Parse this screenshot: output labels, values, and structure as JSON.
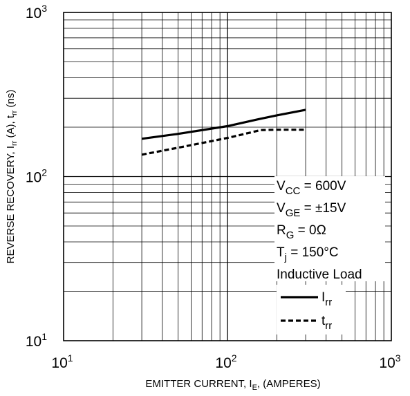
{
  "chart_data": {
    "type": "line",
    "xscale": "log",
    "yscale": "log",
    "xlim": [
      10,
      1000
    ],
    "ylim": [
      10,
      1000
    ],
    "grid": true,
    "x_ticks": [
      {
        "value": 10,
        "base": "10",
        "exp": "1"
      },
      {
        "value": 100,
        "base": "10",
        "exp": "2"
      },
      {
        "value": 1000,
        "base": "10",
        "exp": "3"
      }
    ],
    "y_ticks": [
      {
        "value": 10,
        "base": "10",
        "exp": "1"
      },
      {
        "value": 100,
        "base": "10",
        "exp": "2"
      },
      {
        "value": 1000,
        "base": "10",
        "exp": "3"
      }
    ],
    "xlabel": {
      "main": "EMITTER CURRENT, I",
      "sub": "E",
      "tail": ", (AMPERES)"
    },
    "ylabel": {
      "p1": "REVERSE RECOVERY, I",
      "s1": "rr",
      "p2": " (A), t",
      "s2": "rr",
      "p3": " (ns)"
    },
    "conditions": [
      {
        "main": "V",
        "sub": "CC",
        "tail": " = 600V"
      },
      {
        "main": "V",
        "sub": "GE",
        "tail": " = ±15V"
      },
      {
        "main": "R",
        "sub": "G",
        "tail": " = 0Ω"
      },
      {
        "main": "T",
        "sub": "j",
        "tail": " = 150°C"
      },
      {
        "main": "Inductive Load",
        "sub": "",
        "tail": ""
      }
    ],
    "legend_position": "bottom-right",
    "series": [
      {
        "name": "I",
        "name_sub": "rr",
        "style": "solid",
        "x": [
          30,
          50,
          100,
          150,
          200,
          300
        ],
        "y": [
          170,
          182,
          203,
          222,
          236,
          255
        ]
      },
      {
        "name": "t",
        "name_sub": "rr",
        "style": "dashed",
        "x": [
          30,
          50,
          100,
          160,
          200,
          300
        ],
        "y": [
          136,
          150,
          172,
          192,
          193,
          193
        ]
      }
    ]
  }
}
